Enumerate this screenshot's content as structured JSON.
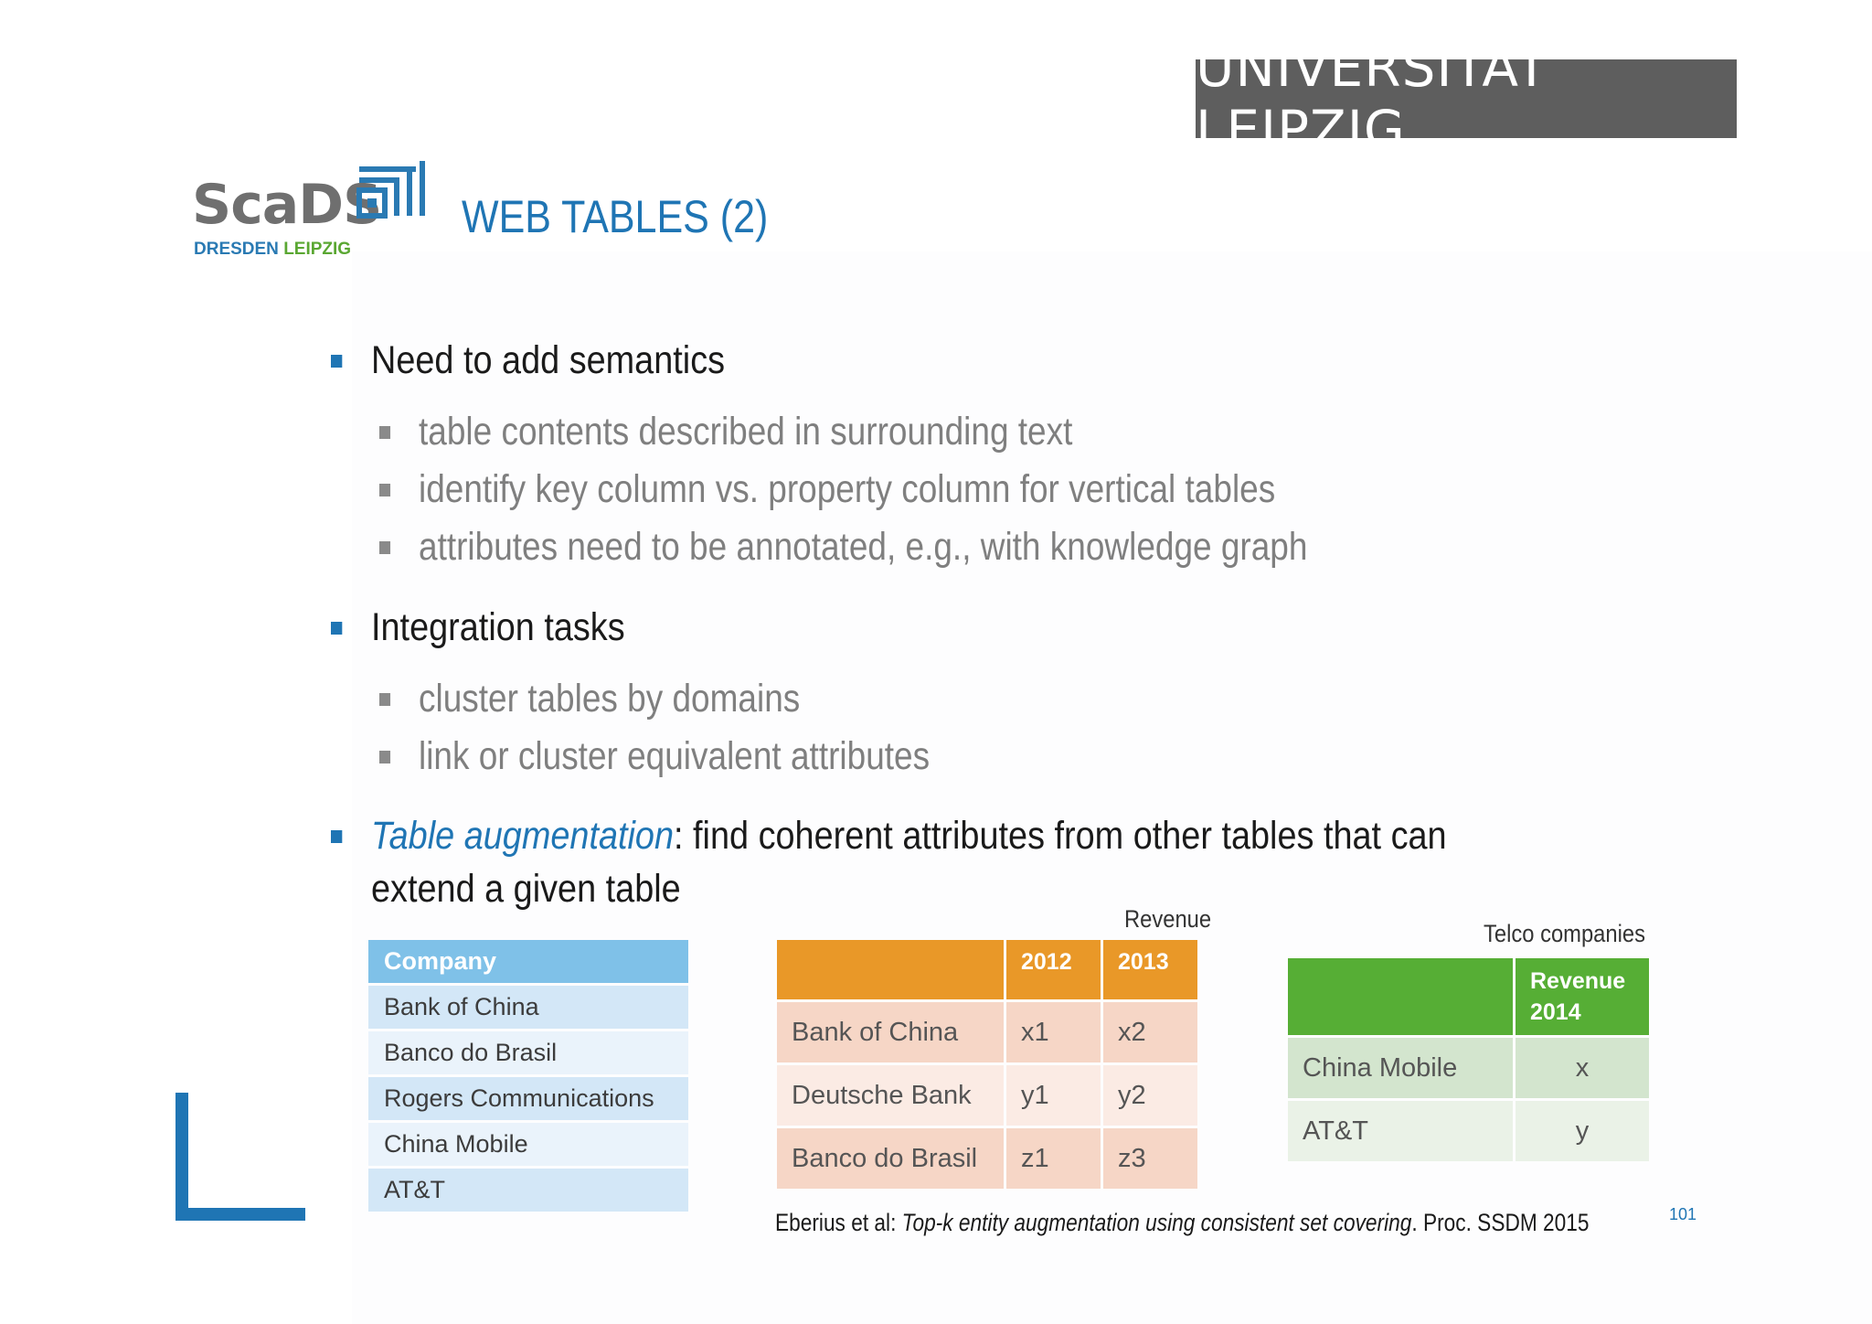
{
  "header": {
    "university": "UNIVERSITÄT LEIPZIG",
    "logo": {
      "word": "ScaDS",
      "sub_dresden": "DRESDEN",
      "sub_leipzig": "LEIPZIG"
    },
    "title": "WEB TABLES (2)"
  },
  "bullets": [
    {
      "text": "Need to add semantics",
      "sub": [
        "table contents described in  surrounding text",
        "identify key column vs. property column for vertical tables",
        "attributes need to be annotated, e.g., with knowledge graph"
      ]
    },
    {
      "text": "Integration tasks",
      "sub": [
        "cluster tables by domains",
        "link or cluster equivalent attributes"
      ]
    },
    {
      "emph": "Table augmentation",
      "text_after": ": find coherent attributes from other tables that can",
      "text_line2": "extend a given table"
    }
  ],
  "company_table": {
    "header": "Company",
    "rows": [
      "Bank of China",
      "Banco do Brasil",
      "Rogers Communications",
      "China Mobile",
      "AT&T"
    ]
  },
  "revenue_table": {
    "caption": "Revenue",
    "headers": [
      "",
      "2012",
      "2013"
    ],
    "rows": [
      [
        "Bank of China",
        "x1",
        "x2"
      ],
      [
        "Deutsche Bank",
        "y1",
        "y2"
      ],
      [
        "Banco do Brasil",
        "z1",
        "z3"
      ]
    ]
  },
  "telco_table": {
    "caption": "Telco companies",
    "header_line1": "Revenue",
    "header_line2": "2014",
    "rows": [
      [
        "China Mobile",
        "x"
      ],
      [
        "AT&T",
        "y"
      ]
    ]
  },
  "citation": {
    "prefix": "Eberius et al: ",
    "title": "Top-k entity augmentation using consistent set covering",
    "suffix": ". Proc. SSDM 2015"
  },
  "page_number": "101",
  "colors": {
    "accent_blue": "#1f75b4",
    "orange": "#e99828",
    "green": "#56ae35",
    "light_blue": "#7fc1e8"
  }
}
